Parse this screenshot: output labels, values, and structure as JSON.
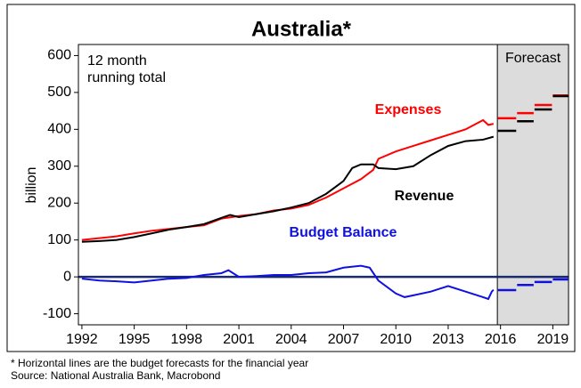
{
  "chart_data": {
    "type": "line",
    "title": "Australia*",
    "subtitle": [
      "12 month",
      "running total"
    ],
    "y_label": "billion",
    "forecast_label": "Forecast",
    "footnotes": [
      "* Horizontal lines are the budget forecasts for the financial year",
      "Source: National Australia Bank, Macrobond"
    ],
    "xlim": [
      1991.8,
      2019.9
    ],
    "xticks": [
      1992,
      1995,
      1998,
      2001,
      2004,
      2007,
      2010,
      2013,
      2016,
      2019
    ],
    "ylim": [
      -130,
      630
    ],
    "yticks": [
      -100,
      0,
      100,
      200,
      300,
      400,
      500,
      600
    ],
    "forecast_start": 2015.82,
    "forecast_periods": [
      [
        2015.85,
        2016.9
      ],
      [
        2016.95,
        2017.9
      ],
      [
        2017.95,
        2018.95
      ],
      [
        2019,
        2019.9
      ]
    ],
    "series": [
      {
        "name": "Expenses",
        "color": "#ff0000",
        "x": [
          1992,
          1993,
          1994,
          1995,
          1996,
          1997,
          1998,
          1999,
          2000,
          2001,
          2002,
          2003,
          2004,
          2005,
          2006,
          2007,
          2008,
          2008.7,
          2009,
          2010,
          2011,
          2012,
          2013,
          2014,
          2015,
          2015.3,
          2015.6
        ],
        "values": [
          100,
          105,
          110,
          118,
          125,
          130,
          135,
          140,
          158,
          165,
          170,
          180,
          185,
          195,
          215,
          240,
          265,
          290,
          320,
          340,
          355,
          370,
          385,
          400,
          425,
          412,
          415
        ],
        "forecast": [
          430,
          444,
          466,
          492
        ]
      },
      {
        "name": "Revenue",
        "color": "#000000",
        "x": [
          1992,
          1993,
          1994,
          1995,
          1996,
          1997,
          1998,
          1999,
          2000,
          2000.5,
          2001,
          2002,
          2003,
          2004,
          2005,
          2006,
          2007,
          2007.5,
          2008,
          2008.7,
          2009,
          2010,
          2011,
          2012,
          2013,
          2014,
          2015,
          2015.6
        ],
        "values": [
          95,
          97,
          100,
          108,
          118,
          128,
          135,
          143,
          160,
          168,
          162,
          170,
          178,
          188,
          200,
          225,
          260,
          295,
          305,
          305,
          295,
          292,
          300,
          330,
          355,
          368,
          372,
          380
        ],
        "forecast": [
          396,
          422,
          454,
          490
        ]
      },
      {
        "name": "Budget Balance",
        "color": "#1010e0",
        "x": [
          1992,
          1993,
          1994,
          1995,
          1996,
          1997,
          1998,
          1999,
          2000,
          2000.4,
          2001,
          2002,
          2003,
          2004,
          2005,
          2006,
          2007,
          2008,
          2008.5,
          2009,
          2010,
          2010.5,
          2011,
          2012,
          2013,
          2014,
          2015,
          2015.3,
          2015.5,
          2015.6
        ],
        "values": [
          -5,
          -10,
          -12,
          -15,
          -10,
          -5,
          -3,
          5,
          10,
          18,
          0,
          2,
          5,
          5,
          10,
          12,
          25,
          30,
          25,
          -10,
          -45,
          -55,
          -50,
          -40,
          -25,
          -40,
          -55,
          -60,
          -40,
          -35
        ],
        "forecast": [
          -36,
          -22,
          -14,
          -7
        ]
      }
    ]
  }
}
